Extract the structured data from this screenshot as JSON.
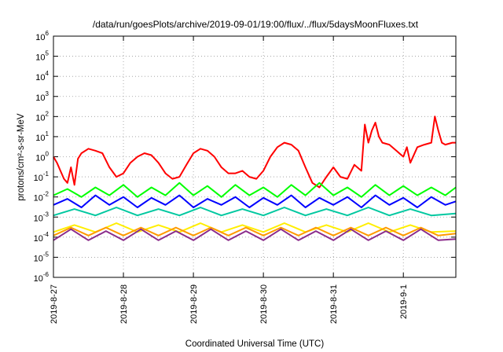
{
  "chart_data": {
    "type": "line",
    "title": "/data/run/goesPlots/archive/2019-09-01/19:00/flux/../flux/5daysMoonFluxes.txt",
    "xlabel": "Coordinated Universal Time (UTC)",
    "ylabel": "protons/cm²-s-sr-MeV",
    "y_scale": "log",
    "ylim_exponent": [
      -6,
      6
    ],
    "y_ticks": [
      {
        "mantissa": "10",
        "exp": "-6"
      },
      {
        "mantissa": "10",
        "exp": "-5"
      },
      {
        "mantissa": "10",
        "exp": "-4"
      },
      {
        "mantissa": "10",
        "exp": "-3"
      },
      {
        "mantissa": "10",
        "exp": "-2"
      },
      {
        "mantissa": "10",
        "exp": "-1"
      },
      {
        "mantissa": "10",
        "exp": "0"
      },
      {
        "mantissa": "10",
        "exp": "1"
      },
      {
        "mantissa": "10",
        "exp": "2"
      },
      {
        "mantissa": "10",
        "exp": "3"
      },
      {
        "mantissa": "10",
        "exp": "4"
      },
      {
        "mantissa": "10",
        "exp": "5"
      },
      {
        "mantissa": "10",
        "exp": "6"
      }
    ],
    "x_range_days": [
      0,
      5.75
    ],
    "x_ticks": [
      {
        "label": "2019-8-27",
        "day": 0
      },
      {
        "label": "2019-8-28",
        "day": 1
      },
      {
        "label": "2019-8-29",
        "day": 2
      },
      {
        "label": "2019-8-30",
        "day": 3
      },
      {
        "label": "2019-8-31",
        "day": 4
      },
      {
        "label": "2019-9-1",
        "day": 5
      }
    ],
    "grid": true,
    "series": [
      {
        "color": "#ff0000",
        "x": [
          0.0,
          0.05,
          0.1,
          0.15,
          0.2,
          0.25,
          0.3,
          0.35,
          0.4,
          0.5,
          0.6,
          0.7,
          0.8,
          0.9,
          1.0,
          1.1,
          1.2,
          1.3,
          1.4,
          1.5,
          1.6,
          1.7,
          1.8,
          1.9,
          2.0,
          2.1,
          2.2,
          2.3,
          2.4,
          2.5,
          2.6,
          2.7,
          2.8,
          2.9,
          3.0,
          3.1,
          3.2,
          3.3,
          3.4,
          3.5,
          3.6,
          3.7,
          3.8,
          3.9,
          4.0,
          4.1,
          4.2,
          4.3,
          4.4,
          4.45,
          4.5,
          4.55,
          4.6,
          4.65,
          4.7,
          4.8,
          4.9,
          5.0,
          5.05,
          5.1,
          5.2,
          5.3,
          5.4,
          5.45,
          5.5,
          5.55,
          5.6,
          5.7,
          5.75
        ],
        "y": [
          1.0,
          0.5,
          0.2,
          0.08,
          0.05,
          0.3,
          0.04,
          0.8,
          1.5,
          2.5,
          2.0,
          1.5,
          0.3,
          0.1,
          0.15,
          0.5,
          1.0,
          1.5,
          1.2,
          0.5,
          0.15,
          0.08,
          0.1,
          0.4,
          1.5,
          2.5,
          2.0,
          1.0,
          0.3,
          0.15,
          0.15,
          0.2,
          0.1,
          0.08,
          0.2,
          1.0,
          3.0,
          5.0,
          4.0,
          2.0,
          0.3,
          0.05,
          0.03,
          0.1,
          0.3,
          0.1,
          0.08,
          0.4,
          0.2,
          40.0,
          5.0,
          20.0,
          50.0,
          10.0,
          5.0,
          4.0,
          2.0,
          1.0,
          3.0,
          0.5,
          3.0,
          4.0,
          5.0,
          100.0,
          20.0,
          5.0,
          4.0,
          5.0,
          5.0
        ]
      },
      {
        "color": "#00ff00",
        "x": [
          0.0,
          0.2,
          0.4,
          0.6,
          0.8,
          1.0,
          1.2,
          1.4,
          1.6,
          1.8,
          2.0,
          2.2,
          2.4,
          2.6,
          2.8,
          3.0,
          3.2,
          3.4,
          3.6,
          3.8,
          4.0,
          4.2,
          4.4,
          4.6,
          4.8,
          5.0,
          5.2,
          5.4,
          5.6,
          5.75
        ],
        "y": [
          0.012,
          0.025,
          0.01,
          0.03,
          0.012,
          0.04,
          0.01,
          0.03,
          0.012,
          0.05,
          0.012,
          0.035,
          0.01,
          0.04,
          0.012,
          0.03,
          0.01,
          0.04,
          0.012,
          0.05,
          0.012,
          0.03,
          0.01,
          0.04,
          0.012,
          0.035,
          0.012,
          0.03,
          0.012,
          0.03
        ]
      },
      {
        "color": "#0000ff",
        "x": [
          0.0,
          0.2,
          0.4,
          0.6,
          0.8,
          1.0,
          1.2,
          1.4,
          1.6,
          1.8,
          2.0,
          2.2,
          2.4,
          2.6,
          2.8,
          3.0,
          3.2,
          3.4,
          3.6,
          3.8,
          4.0,
          4.2,
          4.4,
          4.6,
          4.8,
          5.0,
          5.2,
          5.4,
          5.6,
          5.75
        ],
        "y": [
          0.004,
          0.008,
          0.003,
          0.012,
          0.004,
          0.01,
          0.003,
          0.009,
          0.004,
          0.012,
          0.003,
          0.008,
          0.004,
          0.01,
          0.003,
          0.009,
          0.004,
          0.012,
          0.003,
          0.009,
          0.004,
          0.01,
          0.003,
          0.012,
          0.004,
          0.009,
          0.003,
          0.01,
          0.004,
          0.006
        ]
      },
      {
        "color": "#00c8a0",
        "x": [
          0.0,
          0.3,
          0.6,
          0.9,
          1.2,
          1.5,
          1.8,
          2.1,
          2.4,
          2.7,
          3.0,
          3.3,
          3.6,
          3.9,
          4.2,
          4.5,
          4.8,
          5.1,
          5.4,
          5.75
        ],
        "y": [
          0.0012,
          0.0025,
          0.0012,
          0.003,
          0.0012,
          0.0025,
          0.0012,
          0.003,
          0.0012,
          0.0025,
          0.0012,
          0.003,
          0.0012,
          0.0025,
          0.0012,
          0.003,
          0.0012,
          0.0025,
          0.0012,
          0.0015
        ]
      },
      {
        "color": "#ffee00",
        "x": [
          0.0,
          0.3,
          0.6,
          0.9,
          1.2,
          1.5,
          1.8,
          2.1,
          2.4,
          2.7,
          3.0,
          3.3,
          3.6,
          3.9,
          4.2,
          4.5,
          4.8,
          5.1,
          5.4,
          5.75
        ],
        "y": [
          0.00018,
          0.0004,
          0.00018,
          0.0005,
          0.00018,
          0.0004,
          0.00018,
          0.0005,
          0.00018,
          0.0004,
          0.00018,
          0.0005,
          0.00018,
          0.0004,
          0.00018,
          0.0005,
          0.00018,
          0.0004,
          0.00018,
          0.0002
        ]
      },
      {
        "color": "#ff9900",
        "x": [
          0.0,
          0.25,
          0.5,
          0.75,
          1.0,
          1.25,
          1.5,
          1.75,
          2.0,
          2.25,
          2.5,
          2.75,
          3.0,
          3.25,
          3.5,
          3.75,
          4.0,
          4.25,
          4.5,
          4.75,
          5.0,
          5.25,
          5.5,
          5.75
        ],
        "y": [
          0.00012,
          0.0003,
          0.00012,
          0.0003,
          0.00012,
          0.0003,
          0.00012,
          0.0003,
          0.00012,
          0.0003,
          0.00012,
          0.0003,
          0.00012,
          0.0003,
          0.00012,
          0.0003,
          0.00012,
          0.0003,
          0.00012,
          0.0003,
          0.00012,
          0.0003,
          0.00012,
          0.00015
        ]
      },
      {
        "color": "#8b2c8b",
        "x": [
          0.0,
          0.25,
          0.5,
          0.75,
          1.0,
          1.25,
          1.5,
          1.75,
          2.0,
          2.25,
          2.5,
          2.75,
          3.0,
          3.25,
          3.5,
          3.75,
          4.0,
          4.25,
          4.5,
          4.75,
          5.0,
          5.25,
          5.5,
          5.75
        ],
        "y": [
          7e-05,
          0.00025,
          7e-05,
          0.0002,
          7e-05,
          0.00025,
          7e-05,
          0.0002,
          7e-05,
          0.00025,
          7e-05,
          0.0002,
          7e-05,
          0.00025,
          7e-05,
          0.0002,
          7e-05,
          0.00025,
          7e-05,
          0.0002,
          7e-05,
          0.00025,
          7e-05,
          8e-05
        ]
      }
    ]
  }
}
